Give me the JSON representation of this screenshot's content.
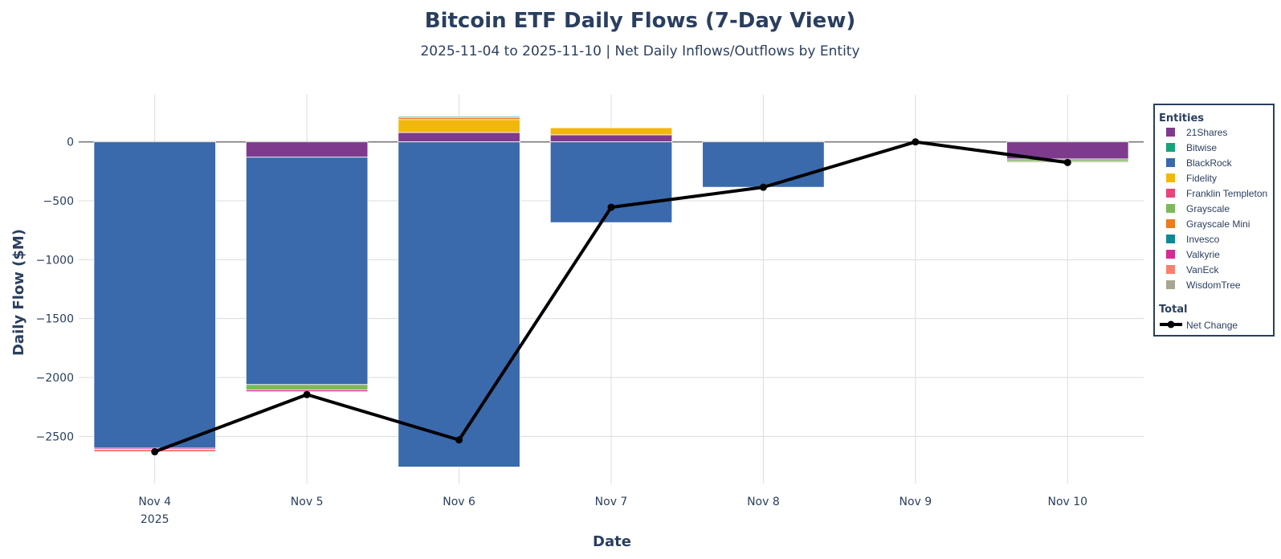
{
  "chart_data": {
    "type": "bar",
    "barmode": "relative",
    "title": "Bitcoin ETF Daily Flows (7-Day View)",
    "subtitle": "2025-11-04 to 2025-11-10 | Net Daily Inflows/Outflows by Entity",
    "xlabel": "Date",
    "ylabel": "Daily Flow ($M)",
    "categories": [
      "Nov 4",
      "Nov 5",
      "Nov 6",
      "Nov 7",
      "Nov 8",
      "Nov 9",
      "Nov 10"
    ],
    "x_year_label": "2025",
    "yticks": [
      0,
      -500,
      -1000,
      -1500,
      -2000,
      -2500
    ],
    "ylim": [
      -2900,
      400
    ],
    "legend_groups": [
      {
        "title": "Entities"
      },
      {
        "title": "Total"
      }
    ],
    "series": [
      {
        "name": "21Shares",
        "color": "#7e3b8e",
        "values": [
          0,
          -130,
          80,
          60,
          0,
          0,
          -145
        ]
      },
      {
        "name": "Bitwise",
        "color": "#14a37a",
        "values": [
          0,
          0,
          0,
          0,
          0,
          0,
          0
        ]
      },
      {
        "name": "BlackRock",
        "color": "#3a69ac",
        "values": [
          -2600,
          -1930,
          -2760,
          -685,
          -385,
          0,
          0
        ]
      },
      {
        "name": "Fidelity",
        "color": "#f2b70d",
        "values": [
          0,
          0,
          110,
          60,
          0,
          0,
          0
        ]
      },
      {
        "name": "Franklin Templeton",
        "color": "#e6447a",
        "values": [
          0,
          0,
          0,
          0,
          0,
          0,
          0
        ]
      },
      {
        "name": "Grayscale",
        "color": "#7cba59",
        "values": [
          0,
          -45,
          0,
          0,
          0,
          0,
          -20
        ]
      },
      {
        "name": "Grayscale Mini",
        "color": "#ee7b1c",
        "values": [
          0,
          0,
          15,
          0,
          0,
          0,
          0
        ]
      },
      {
        "name": "Invesco",
        "color": "#0f8a95",
        "values": [
          0,
          0,
          10,
          0,
          0,
          0,
          0
        ]
      },
      {
        "name": "Valkyrie",
        "color": "#d62a96",
        "values": [
          -10,
          -15,
          0,
          0,
          0,
          0,
          0
        ]
      },
      {
        "name": "VanEck",
        "color": "#f8806f",
        "values": [
          -20,
          0,
          0,
          0,
          0,
          0,
          0
        ]
      },
      {
        "name": "WisdomTree",
        "color": "#a8a690",
        "values": [
          0,
          0,
          0,
          0,
          0,
          0,
          -10
        ]
      }
    ],
    "total": {
      "name": "Net Change",
      "color": "#000000",
      "values": [
        -2630,
        -2145,
        -2530,
        -555,
        -385,
        0,
        -175
      ]
    }
  }
}
